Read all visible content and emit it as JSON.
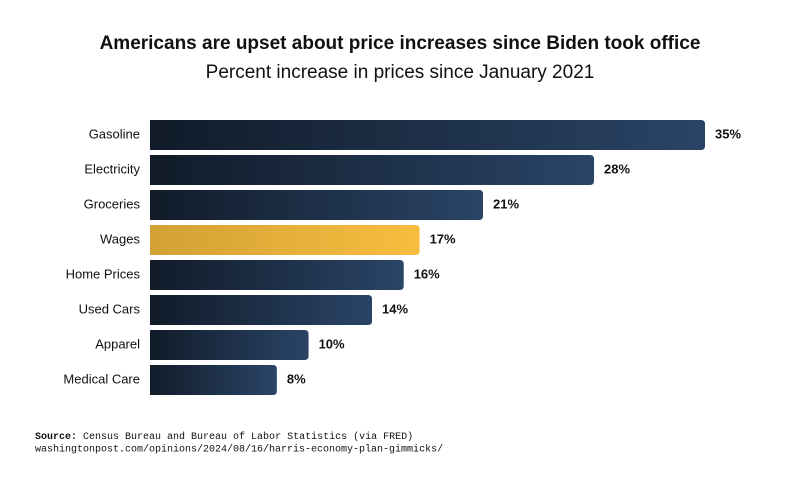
{
  "chart_data": {
    "type": "bar",
    "orientation": "horizontal",
    "title": "Americans are upset about price increases since Biden took office",
    "subtitle": "Percent increase in prices since January 2021",
    "categories": [
      "Gasoline",
      "Electricity",
      "Groceries",
      "Wages",
      "Home Prices",
      "Used Cars",
      "Apparel",
      "Medical Care"
    ],
    "values": [
      35,
      28,
      21,
      17,
      16,
      14,
      10,
      8
    ],
    "value_labels": [
      "35%",
      "28%",
      "21%",
      "17%",
      "16%",
      "14%",
      "10%",
      "8%"
    ],
    "colors": [
      "#2a4467",
      "#2a4467",
      "#2a4467",
      "#f7bd3e",
      "#2a4467",
      "#2a4467",
      "#2a4467",
      "#2a4467"
    ],
    "source_label": "Source:",
    "source": "Census Bureau and Bureau of Labor Statistics (via FRED)",
    "url": "washingtonpost.com/opinions/2024/08/16/harris-economy-plan-gimmicks/"
  }
}
